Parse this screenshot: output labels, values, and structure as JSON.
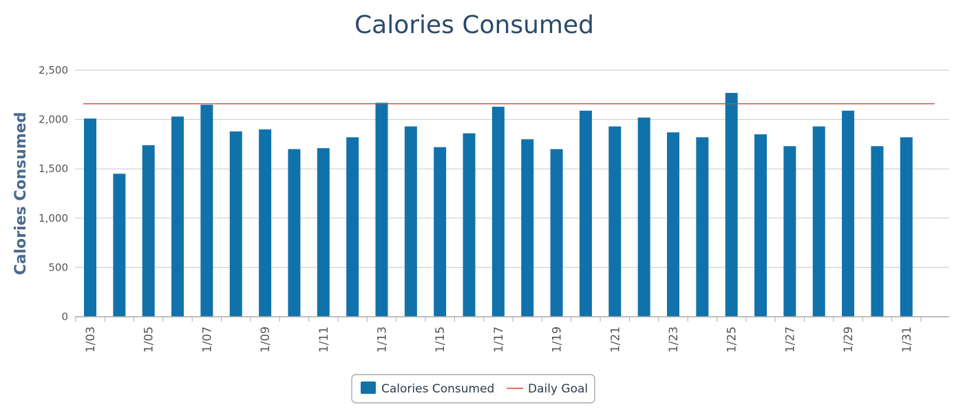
{
  "chart_data": {
    "type": "bar",
    "title": "Calories Consumed",
    "ylabel": "Calories Consumed",
    "xlabel": "",
    "ylim": [
      0,
      2500
    ],
    "y_ticks": [
      "0",
      "500",
      "1,000",
      "1,500",
      "2,000",
      "2,500"
    ],
    "y_tick_values": [
      0,
      500,
      1000,
      1500,
      2000,
      2500
    ],
    "categories": [
      "1/03",
      "1/04",
      "1/05",
      "1/06",
      "1/07",
      "1/08",
      "1/09",
      "1/10",
      "1/11",
      "1/12",
      "1/13",
      "1/14",
      "1/15",
      "1/16",
      "1/17",
      "1/18",
      "1/19",
      "1/20",
      "1/21",
      "1/22",
      "1/23",
      "1/24",
      "1/25",
      "1/26",
      "1/27",
      "1/28",
      "1/29",
      "1/30",
      "1/31"
    ],
    "x_tick_labels": [
      "1/03",
      "",
      "1/05",
      "",
      "1/07",
      "",
      "1/09",
      "",
      "1/11",
      "",
      "1/13",
      "",
      "1/15",
      "",
      "1/17",
      "",
      "1/19",
      "",
      "1/21",
      "",
      "1/23",
      "",
      "1/25",
      "",
      "1/27",
      "",
      "1/29",
      "",
      "1/31"
    ],
    "series": [
      {
        "name": "Calories Consumed",
        "type": "bar",
        "color": "#1172ab",
        "values": [
          2010,
          1450,
          1740,
          2030,
          2150,
          1880,
          1900,
          1700,
          1710,
          1820,
          2170,
          1930,
          1720,
          1860,
          2130,
          1800,
          1700,
          2090,
          1930,
          2020,
          1870,
          1820,
          2270,
          1850,
          1730,
          1930,
          2090,
          1730,
          1820
        ]
      },
      {
        "name": "Daily Goal",
        "type": "line",
        "color": "#e0403b",
        "value": 2160
      }
    ],
    "grid": true,
    "legend_position": "bottom-center"
  }
}
